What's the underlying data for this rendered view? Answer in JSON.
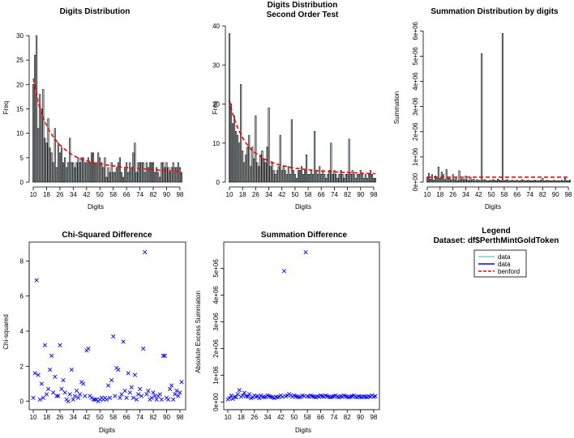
{
  "chart_data": [
    {
      "id": "p1",
      "type": "bar",
      "title": "Digits Distribution",
      "xlabel": "Digits",
      "ylabel": "Freq",
      "xlim": [
        10,
        99
      ],
      "ylim": [
        0,
        32
      ],
      "yticks": [
        0,
        5,
        10,
        15,
        20,
        25,
        30
      ],
      "xticks": [
        10,
        18,
        26,
        34,
        42,
        50,
        58,
        66,
        74,
        82,
        90,
        98
      ],
      "values": [
        20,
        26,
        30,
        11,
        18,
        15,
        19,
        9,
        8,
        13,
        7,
        6,
        4,
        11,
        3,
        8,
        6,
        7,
        4,
        5,
        3,
        4,
        9,
        4,
        4,
        3,
        4,
        5,
        4,
        5,
        5,
        4,
        4,
        5,
        4,
        6,
        6,
        4,
        4,
        6,
        5,
        4,
        3,
        5,
        1,
        3,
        2,
        4,
        2,
        2,
        3,
        4,
        5,
        2,
        1,
        3,
        4,
        2,
        4,
        3,
        6,
        8,
        2,
        4,
        4,
        4,
        4,
        2,
        4,
        3,
        4,
        4,
        4,
        2,
        3,
        2,
        1,
        4,
        4,
        3,
        4,
        3,
        2,
        3,
        4,
        3,
        3,
        4,
        3,
        2
      ],
      "benford": [
        21.2,
        19.3,
        17.7,
        16.3,
        15.1,
        14.1,
        13.1,
        12.3,
        11.6,
        10.9,
        10.3,
        9.8,
        9.3,
        8.8,
        8.4,
        8,
        7.6,
        7.3,
        7,
        6.7,
        6.4,
        6.2,
        5.9,
        5.7,
        5.5,
        5.3,
        5.1,
        5,
        4.8,
        4.7,
        4.6,
        4.5,
        4.4,
        4.3,
        4.2,
        4.1,
        4,
        3.9,
        3.9,
        3.8,
        3.7,
        3.7,
        3.6,
        3.6,
        3.5,
        3.5,
        3.4,
        3.4,
        3.3,
        3.3,
        3.2,
        3.2,
        3.1,
        3.1,
        3.1,
        3,
        3,
        3,
        2.9,
        2.9,
        2.9,
        2.8,
        2.8,
        2.8,
        2.8,
        2.7,
        2.7,
        2.7,
        2.6,
        2.6,
        2.6,
        2.6,
        2.5,
        2.5,
        2.5,
        2.5,
        2.4,
        2.4,
        2.4,
        2.4,
        2.3,
        2.3,
        2.3,
        2.3,
        2.3,
        2.2,
        2.2,
        2.2,
        2.2,
        2.2
      ]
    },
    {
      "id": "p2",
      "type": "bar",
      "title": "Digits Distribution",
      "subtitle": "Second Order Test",
      "xlabel": "Digits",
      "ylabel": "Freq",
      "xlim": [
        10,
        99
      ],
      "ylim": [
        0,
        40
      ],
      "yticks": [
        0,
        10,
        20,
        30,
        40
      ],
      "xticks": [
        10,
        18,
        26,
        34,
        42,
        50,
        58,
        66,
        74,
        82,
        90,
        98
      ],
      "values": [
        38,
        20,
        15,
        17,
        13,
        12,
        10,
        25,
        8,
        5,
        7,
        9,
        12,
        4,
        9,
        6,
        17,
        5,
        4,
        7,
        8,
        6,
        5,
        9,
        19,
        4,
        5,
        3,
        2,
        3,
        4,
        12,
        3,
        4,
        3,
        2,
        4,
        2,
        16,
        3,
        2,
        1,
        3,
        3,
        4,
        2,
        3,
        7,
        2,
        2,
        3,
        2,
        13,
        3,
        2,
        4,
        2,
        3,
        2,
        1,
        2,
        3,
        10,
        2,
        3,
        2,
        1,
        2,
        3,
        2,
        1,
        2,
        2,
        11,
        2,
        3,
        2,
        1,
        2,
        2,
        3,
        2,
        1,
        2,
        1,
        2,
        3,
        2,
        1,
        1
      ],
      "benford": [
        21,
        19.1,
        17.5,
        16.2,
        15,
        13.9,
        13,
        12.2,
        11.4,
        10.7,
        10.1,
        9.5,
        9,
        8.5,
        8.1,
        7.7,
        7.4,
        7.1,
        6.8,
        6.5,
        6.2,
        6,
        5.8,
        5.6,
        5.4,
        5.2,
        5.1,
        4.9,
        4.8,
        4.6,
        4.5,
        4.4,
        4.3,
        4.2,
        4.1,
        4,
        3.9,
        3.8,
        3.7,
        3.7,
        3.6,
        3.5,
        3.5,
        3.4,
        3.4,
        3.3,
        3.3,
        3.2,
        3.2,
        3.1,
        3.1,
        3,
        3,
        3,
        2.9,
        2.9,
        2.9,
        2.8,
        2.8,
        2.8,
        2.8,
        2.7,
        2.7,
        2.7,
        2.7,
        2.6,
        2.6,
        2.6,
        2.6,
        2.5,
        2.5,
        2.5,
        2.5,
        2.5,
        2.4,
        2.4,
        2.4,
        2.4,
        2.4,
        2.3,
        2.3,
        2.3,
        2.3,
        2.3,
        2.3,
        2.2,
        2.2,
        2.2,
        2.2,
        2.2
      ]
    },
    {
      "id": "p3",
      "type": "bar",
      "title": "Summation Distribution by digits",
      "xlabel": "Digits",
      "ylabel": "Summation",
      "xlim": [
        10,
        99
      ],
      "ylim": [
        0,
        6200000
      ],
      "yticks": [
        0,
        1000000,
        2000000,
        3000000,
        4000000,
        5000000,
        6000000
      ],
      "ytick_labels": [
        "0e+00",
        "1e+06",
        "2e+06",
        "3e+06",
        "4e+06",
        "5e+06",
        "6e+06"
      ],
      "xticks": [
        10,
        18,
        26,
        34,
        42,
        50,
        58,
        66,
        74,
        82,
        90,
        98
      ],
      "values": [
        200000,
        350000,
        120000,
        300000,
        80000,
        250000,
        200000,
        600000,
        150000,
        400000,
        300000,
        100000,
        500000,
        200000,
        150000,
        80000,
        300000,
        100000,
        200000,
        50000,
        450000,
        100000,
        150000,
        80000,
        250000,
        100000,
        60000,
        200000,
        80000,
        120000,
        50000,
        100000,
        80000,
        60000,
        5100000,
        80000,
        100000,
        60000,
        50000,
        80000,
        60000,
        100000,
        80000,
        50000,
        120000,
        80000,
        60000,
        5900000,
        60000,
        80000,
        100000,
        50000,
        60000,
        80000,
        50000,
        60000,
        80000,
        50000,
        60000,
        100000,
        80000,
        50000,
        60000,
        80000,
        50000,
        60000,
        50000,
        80000,
        60000,
        50000,
        60000,
        80000,
        150000,
        50000,
        60000,
        80000,
        50000,
        60000,
        50000,
        80000,
        60000,
        50000,
        60000,
        50000,
        80000,
        50000,
        150000,
        60000,
        50000,
        80000
      ],
      "benford": 200000
    },
    {
      "id": "p4",
      "type": "scatter",
      "title": "Chi-Squared Difference",
      "xlabel": "Digits",
      "ylabel": "Chi-squared",
      "xlim": [
        10,
        99
      ],
      "ylim": [
        -0.2,
        8.8
      ],
      "yticks": [
        0,
        2,
        4,
        6,
        8
      ],
      "xticks": [
        10,
        18,
        26,
        34,
        42,
        50,
        58,
        66,
        74,
        82,
        90,
        98
      ],
      "values": [
        0.2,
        1.6,
        6.9,
        1.5,
        0.1,
        1,
        0.2,
        3.2,
        0.4,
        0.7,
        1.8,
        2.6,
        0.5,
        1.4,
        0.3,
        0.3,
        3.2,
        0.7,
        1.2,
        0.5,
        0.1,
        0,
        0.4,
        1.8,
        0.1,
        0.3,
        0.6,
        0.2,
        0.4,
        1.1,
        1,
        0.3,
        2.9,
        3,
        0.3,
        0.2,
        0.1,
        0.1,
        0.1,
        0,
        0.1,
        0.2,
        0.1,
        0.2,
        0.1,
        0.9,
        0.2,
        1.2,
        3.7,
        0.3,
        1.9,
        1.8,
        0.2,
        0.4,
        3.4,
        0.6,
        0.2,
        1.6,
        0.5,
        0.8,
        0.2,
        1.5,
        0.1,
        0.4,
        0.7,
        0.3,
        3,
        8.5,
        0.4,
        0.6,
        0.1,
        0.2,
        0.5,
        0.3,
        0.1,
        0.3,
        0.4,
        0.1,
        2.6,
        2.6,
        0.2,
        0.1,
        0.7,
        0.9,
        0.1,
        0.4,
        0.6,
        0.3,
        0.5,
        1.1
      ]
    },
    {
      "id": "p5",
      "type": "scatter",
      "title": "Summation Difference",
      "xlabel": "Digits",
      "ylabel": "Absolute Excess Summation",
      "xlim": [
        10,
        99
      ],
      "ylim": [
        -100000,
        5800000
      ],
      "yticks": [
        0,
        1000000,
        2000000,
        3000000,
        4000000,
        5000000
      ],
      "ytick_labels": [
        "0e+00",
        "1e+06",
        "2e+06",
        "3e+06",
        "4e+06",
        "5e+06"
      ],
      "xticks": [
        10,
        18,
        26,
        34,
        42,
        50,
        58,
        66,
        74,
        82,
        90,
        98
      ],
      "values": [
        100000,
        150000,
        250000,
        120000,
        200000,
        180000,
        300000,
        450000,
        200000,
        250000,
        350000,
        220000,
        200000,
        300000,
        150000,
        180000,
        250000,
        200000,
        220000,
        150000,
        250000,
        200000,
        180000,
        200000,
        250000,
        220000,
        200000,
        180000,
        150000,
        200000,
        180000,
        200000,
        250000,
        200000,
        4900000,
        220000,
        250000,
        300000,
        250000,
        200000,
        250000,
        220000,
        200000,
        180000,
        200000,
        250000,
        220000,
        5600000,
        220000,
        200000,
        250000,
        220000,
        200000,
        180000,
        220000,
        200000,
        250000,
        220000,
        200000,
        250000,
        220000,
        200000,
        180000,
        200000,
        220000,
        250000,
        200000,
        180000,
        220000,
        200000,
        250000,
        220000,
        200000,
        180000,
        200000,
        220000,
        250000,
        200000,
        180000,
        220000,
        200000,
        180000,
        220000,
        200000,
        180000,
        220000,
        200000,
        250000,
        200000,
        220000
      ]
    }
  ],
  "legend": {
    "title": "Legend",
    "dataset": "Dataset: df$PerthMintGoldToken",
    "entries": [
      {
        "label": "data",
        "color": "#66c2c2",
        "style": "solid"
      },
      {
        "label": "data",
        "color": "#0000ff",
        "style": "solid"
      },
      {
        "label": "benford",
        "color": "#ff0000",
        "style": "dashed"
      }
    ]
  },
  "colors": {
    "bar_fill": "#c8d4d4",
    "bar_stroke": "#000000",
    "benford_line": "#ff0000",
    "scatter_point": "#0000ff"
  }
}
